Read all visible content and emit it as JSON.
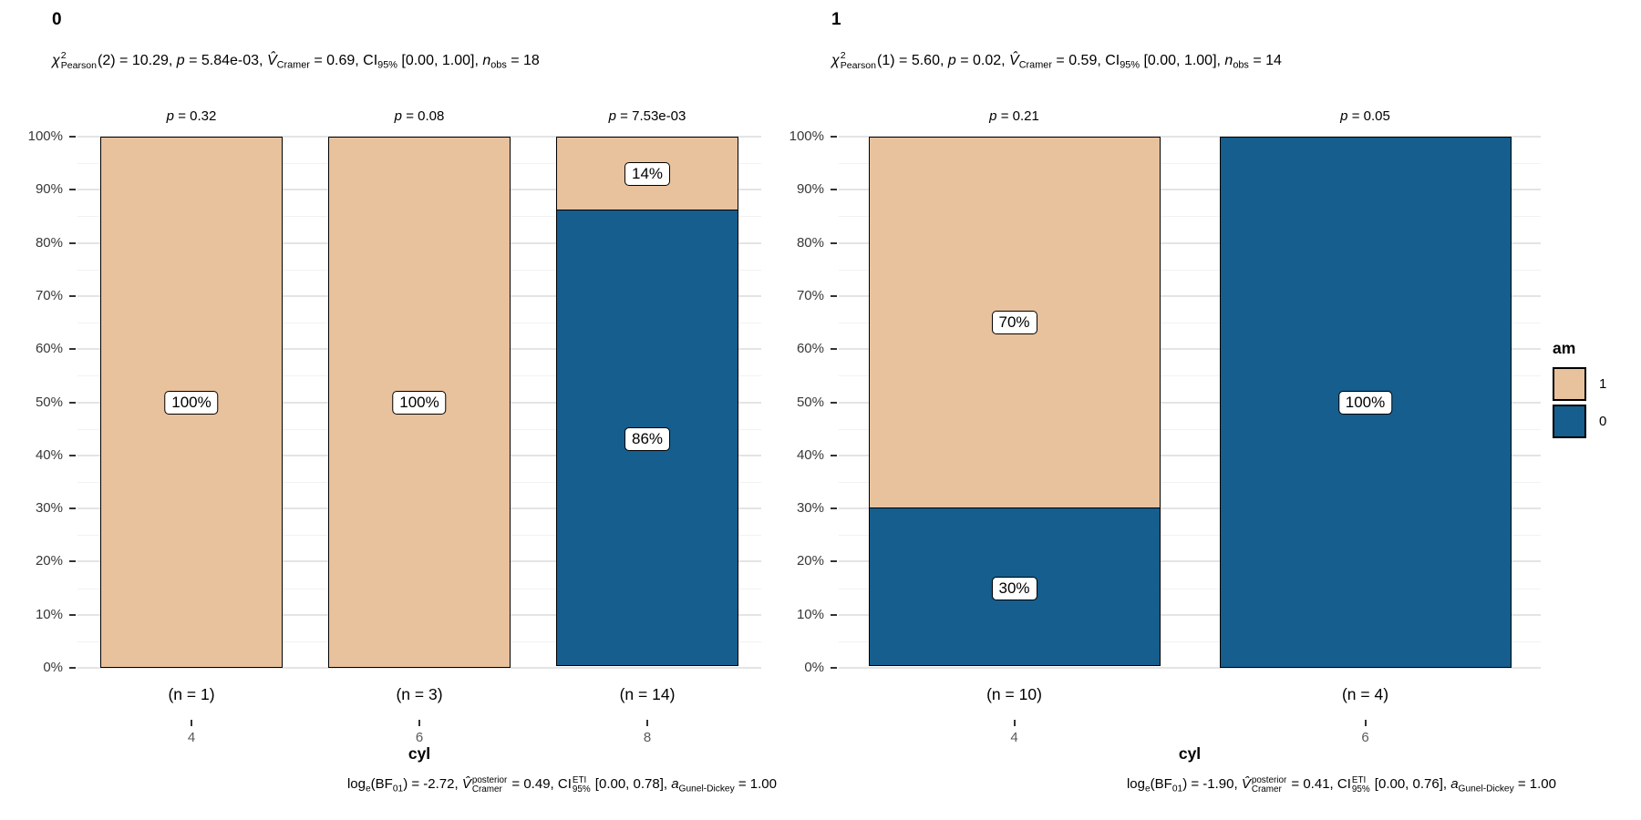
{
  "colors": {
    "am_1": "#E8C19D",
    "am_0": "#155E8D",
    "grid_major": "#e4e4e4",
    "grid_minor": "#f2f2f2",
    "axis_text": "#383838",
    "category_text": "#595959"
  },
  "legend": {
    "title": "am",
    "items": [
      {
        "label": "1",
        "series": "am_1"
      },
      {
        "label": "0",
        "series": "am_0"
      }
    ]
  },
  "y_axis": {
    "ticks": [
      "0%",
      "10%",
      "20%",
      "30%",
      "40%",
      "50%",
      "60%",
      "70%",
      "80%",
      "90%",
      "100%"
    ],
    "range": [
      0,
      100
    ],
    "major_step": 10,
    "minor_step": 5
  },
  "chart_data": [
    {
      "type": "bar",
      "stacked": true,
      "unit": "percent",
      "facet_title": "0",
      "xlabel": "cyl",
      "categories": [
        "4",
        "6",
        "8"
      ],
      "series": [
        {
          "name": "1",
          "values": [
            100,
            100,
            14
          ]
        },
        {
          "name": "0",
          "values": [
            0,
            0,
            86
          ]
        }
      ],
      "subtitle_rich": [
        {
          "t": "χ",
          "s": "i"
        },
        {
          "s": "stack",
          "sup": "2",
          "sub": "Pearson"
        },
        {
          "t": "(2) = 10.29, ",
          "s": "n"
        },
        {
          "t": "p",
          "s": "i"
        },
        {
          "t": " = 5.84e-03, ",
          "s": "n"
        },
        {
          "t": "V̂",
          "s": "i"
        },
        {
          "t": "Cramer",
          "s": "sub"
        },
        {
          "t": " = 0.69, CI",
          "s": "n"
        },
        {
          "t": "95%",
          "s": "sub"
        },
        {
          "t": " [0.00, 1.00], ",
          "s": "n"
        },
        {
          "t": "n",
          "s": "i"
        },
        {
          "t": "obs",
          "s": "sub"
        },
        {
          "t": " = 18",
          "s": "n"
        }
      ],
      "caption_rich": [
        {
          "t": "log",
          "s": "n"
        },
        {
          "t": "e",
          "s": "sub"
        },
        {
          "t": "(BF",
          "s": "n"
        },
        {
          "t": "01",
          "s": "sub"
        },
        {
          "t": ") = -2.72, ",
          "s": "n"
        },
        {
          "t": "V̂",
          "s": "i"
        },
        {
          "s": "stack",
          "sup": "posterior",
          "sub": "Cramer"
        },
        {
          "t": " = 0.49, CI",
          "s": "n"
        },
        {
          "s": "stack",
          "sup": "ETI",
          "sub": "95%"
        },
        {
          "t": " [0.00, 0.78], ",
          "s": "n"
        },
        {
          "t": "a",
          "s": "i"
        },
        {
          "t": "Gunel-Dickey",
          "s": "sub"
        },
        {
          "t": " = 1.00",
          "s": "n"
        }
      ],
      "bars": [
        {
          "category": "4",
          "p_label": "p = 0.32",
          "n_label": "(n = 1)",
          "segments": [
            {
              "series": "am_1",
              "value": 100,
              "label": "100%"
            }
          ]
        },
        {
          "category": "6",
          "p_label": "p = 0.08",
          "n_label": "(n = 3)",
          "segments": [
            {
              "series": "am_1",
              "value": 100,
              "label": "100%"
            }
          ]
        },
        {
          "category": "8",
          "p_label": "p = 7.53e-03",
          "n_label": "(n = 14)",
          "segments": [
            {
              "series": "am_1",
              "value": 14,
              "label": "14%"
            },
            {
              "series": "am_0",
              "value": 86,
              "label": "86%"
            }
          ]
        }
      ]
    },
    {
      "type": "bar",
      "stacked": true,
      "unit": "percent",
      "facet_title": "1",
      "xlabel": "cyl",
      "categories": [
        "4",
        "6"
      ],
      "series": [
        {
          "name": "1",
          "values": [
            70,
            0
          ]
        },
        {
          "name": "0",
          "values": [
            30,
            100
          ]
        }
      ],
      "subtitle_rich": [
        {
          "t": "χ",
          "s": "i"
        },
        {
          "s": "stack",
          "sup": "2",
          "sub": "Pearson"
        },
        {
          "t": "(1) = 5.60, ",
          "s": "n"
        },
        {
          "t": "p",
          "s": "i"
        },
        {
          "t": " = 0.02, ",
          "s": "n"
        },
        {
          "t": "V̂",
          "s": "i"
        },
        {
          "t": "Cramer",
          "s": "sub"
        },
        {
          "t": " = 0.59, CI",
          "s": "n"
        },
        {
          "t": "95%",
          "s": "sub"
        },
        {
          "t": " [0.00, 1.00], ",
          "s": "n"
        },
        {
          "t": "n",
          "s": "i"
        },
        {
          "t": "obs",
          "s": "sub"
        },
        {
          "t": " = 14",
          "s": "n"
        }
      ],
      "caption_rich": [
        {
          "t": "log",
          "s": "n"
        },
        {
          "t": "e",
          "s": "sub"
        },
        {
          "t": "(BF",
          "s": "n"
        },
        {
          "t": "01",
          "s": "sub"
        },
        {
          "t": ") = -1.90, ",
          "s": "n"
        },
        {
          "t": "V̂",
          "s": "i"
        },
        {
          "s": "stack",
          "sup": "posterior",
          "sub": "Cramer"
        },
        {
          "t": " = 0.41, CI",
          "s": "n"
        },
        {
          "s": "stack",
          "sup": "ETI",
          "sub": "95%"
        },
        {
          "t": " [0.00, 0.76], ",
          "s": "n"
        },
        {
          "t": "a",
          "s": "i"
        },
        {
          "t": "Gunel-Dickey",
          "s": "sub"
        },
        {
          "t": " = 1.00",
          "s": "n"
        }
      ],
      "bars": [
        {
          "category": "4",
          "p_label": "p = 0.21",
          "n_label": "(n = 10)",
          "segments": [
            {
              "series": "am_1",
              "value": 70,
              "label": "70%"
            },
            {
              "series": "am_0",
              "value": 30,
              "label": "30%"
            }
          ]
        },
        {
          "category": "6",
          "p_label": "p = 0.05",
          "n_label": "(n = 4)",
          "segments": [
            {
              "series": "am_0",
              "value": 100,
              "label": "100%"
            }
          ]
        }
      ]
    }
  ]
}
